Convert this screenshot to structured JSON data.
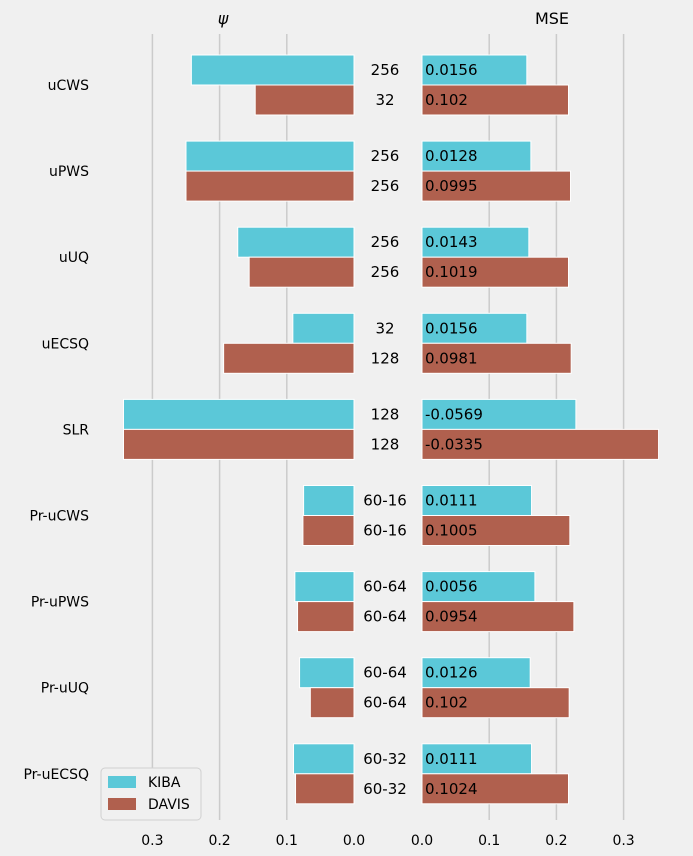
{
  "chart_data": {
    "type": "bar",
    "panels": [
      {
        "title": "ψ",
        "orientation": "mirrored",
        "xlim": [
          0.36,
          0.0
        ],
        "xticks": [
          "0.3",
          "0.2",
          "0.1",
          "0.0"
        ]
      },
      {
        "title": "MSE",
        "xlim": [
          0.0,
          0.36
        ],
        "xticks": [
          "0.0",
          "0.1",
          "0.2",
          "0.3"
        ]
      }
    ],
    "categories": [
      "uCWS",
      "uPWS",
      "uUQ",
      "uECSQ",
      "SLR",
      "Pr-uCWS",
      "Pr-uPWS",
      "Pr-uUQ",
      "Pr-uECSQ"
    ],
    "series": [
      {
        "name": "KIBA",
        "color": "#5bc8d8",
        "psi": [
          0.242,
          0.25,
          0.173,
          0.091,
          0.343,
          0.075,
          0.088,
          0.081,
          0.09
        ],
        "mse": [
          0.156,
          0.162,
          0.159,
          0.156,
          0.229,
          0.163,
          0.168,
          0.161,
          0.163
        ],
        "mse_labels": [
          "0.0156",
          "0.0128",
          "0.0143",
          "0.0156",
          "-0.0569",
          "0.0111",
          "0.0056",
          "0.0126",
          "0.0111"
        ],
        "center_labels": [
          "256",
          "256",
          "256",
          "32",
          "128",
          "60-16",
          "60-64",
          "60-64",
          "60-32"
        ]
      },
      {
        "name": "DAVIS",
        "color": "#b0604e",
        "psi": [
          0.147,
          0.25,
          0.156,
          0.194,
          0.343,
          0.076,
          0.084,
          0.065,
          0.087
        ],
        "mse": [
          0.218,
          0.221,
          0.218,
          0.222,
          0.352,
          0.22,
          0.226,
          0.219,
          0.218
        ],
        "mse_labels": [
          "0.102",
          "0.0995",
          "0.1019",
          "0.0981",
          "-0.0335",
          "0.1005",
          "0.0954",
          "0.102",
          "0.1024"
        ],
        "center_labels": [
          "32",
          "256",
          "256",
          "128",
          "128",
          "60-16",
          "60-64",
          "60-64",
          "60-32"
        ]
      }
    ],
    "legend": {
      "position": "bottom-left",
      "entries": [
        "KIBA",
        "DAVIS"
      ]
    },
    "grid": true
  }
}
